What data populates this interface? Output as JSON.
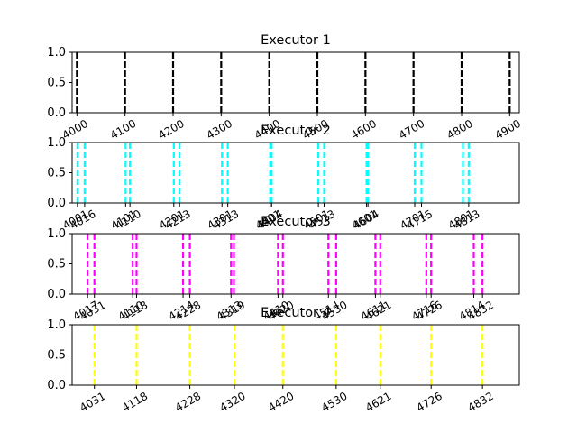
{
  "chart_data": [
    {
      "type": "event-lines",
      "title": "Executor 1",
      "color": "#000000",
      "xlim": [
        3990,
        4920
      ],
      "ylim": [
        0,
        1
      ],
      "yticks": [
        "0.0",
        "0.5",
        "1.0"
      ],
      "xticks": [
        4000,
        4100,
        4200,
        4300,
        4400,
        4500,
        4600,
        4700,
        4800,
        4900
      ],
      "events": [
        4000,
        4100,
        4200,
        4300,
        4400,
        4500,
        4600,
        4700,
        4800,
        4900
      ]
    },
    {
      "type": "event-lines",
      "title": "Executor 2",
      "color": "#00ffff",
      "xlim": [
        3990,
        4918
      ],
      "ylim": [
        0,
        1
      ],
      "yticks": [
        "0.0",
        "0.5",
        "1.0"
      ],
      "xticks": [
        4001,
        4016,
        4101,
        4110,
        4201,
        4213,
        4301,
        4313,
        4401,
        4404,
        4501,
        4513,
        4601,
        4604,
        4701,
        4715,
        4801,
        4813
      ],
      "events": [
        4001,
        4016,
        4101,
        4110,
        4201,
        4213,
        4301,
        4313,
        4401,
        4404,
        4501,
        4513,
        4601,
        4604,
        4701,
        4715,
        4801,
        4813
      ]
    },
    {
      "type": "event-lines",
      "title": "Executor 3",
      "color": "#ff00ff",
      "xlim": [
        3985,
        4908
      ],
      "ylim": [
        0,
        1
      ],
      "yticks": [
        "0.0",
        "0.5",
        "1.0"
      ],
      "xticks": [
        4017,
        4031,
        4110,
        4118,
        4214,
        4228,
        4313,
        4319,
        4410,
        4420,
        4514,
        4530,
        4611,
        4621,
        4716,
        4726,
        4814,
        4832
      ],
      "events": [
        4017,
        4031,
        4110,
        4118,
        4214,
        4228,
        4313,
        4319,
        4410,
        4420,
        4514,
        4530,
        4611,
        4621,
        4716,
        4726,
        4814,
        4832
      ]
    },
    {
      "type": "event-lines",
      "title": "Executor 4",
      "color": "#ffff00",
      "xlim": [
        3985,
        4908
      ],
      "ylim": [
        0,
        1
      ],
      "yticks": [
        "0.0",
        "0.5",
        "1.0"
      ],
      "xticks": [
        4031,
        4118,
        4228,
        4320,
        4420,
        4530,
        4621,
        4726,
        4832
      ],
      "events": [
        4031,
        4118,
        4228,
        4320,
        4420,
        4530,
        4621,
        4726,
        4832
      ]
    }
  ]
}
